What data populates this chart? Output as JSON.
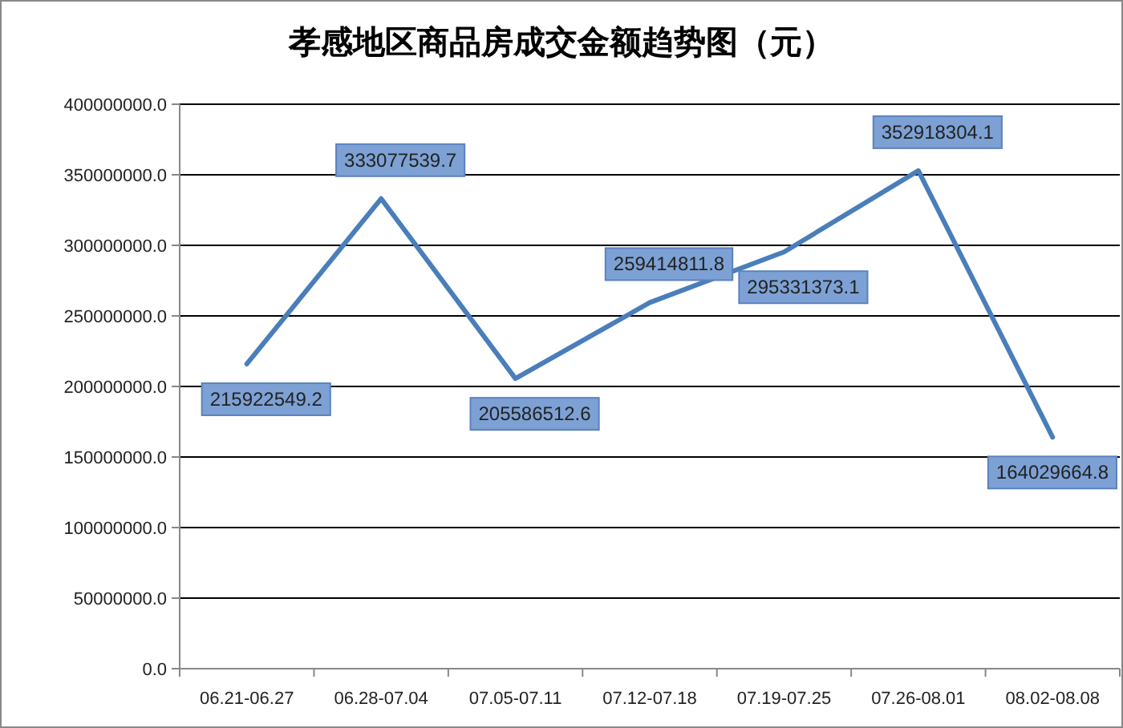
{
  "chart_data": {
    "type": "line",
    "title": "孝感地区商品房成交金额趋势图（元）",
    "categories": [
      "06.21-06.27",
      "06.28-07.04",
      "07.05-07.11",
      "07.12-07.18",
      "07.19-07.25",
      "07.26-08.01",
      "08.02-08.08"
    ],
    "series": [
      {
        "color": "#4a7ebb",
        "values": [
          215922549.2,
          333077539.7,
          205586512.6,
          259414811.8,
          295331373.1,
          352918304.1,
          164029664.8
        ]
      }
    ],
    "ylim": [
      0,
      400000000
    ],
    "yticks": [
      {
        "value": 0,
        "label": "0.0"
      },
      {
        "value": 50000000,
        "label": "50000000.0"
      },
      {
        "value": 100000000,
        "label": "100000000.0"
      },
      {
        "value": 150000000,
        "label": "150000000.0"
      },
      {
        "value": 200000000,
        "label": "200000000.0"
      },
      {
        "value": 250000000,
        "label": "250000000.0"
      },
      {
        "value": 300000000,
        "label": "300000000.0"
      },
      {
        "value": 350000000,
        "label": "350000000.0"
      },
      {
        "value": 400000000,
        "label": "400000000.0"
      }
    ],
    "grid": "y",
    "data_labels": true,
    "marker": "none",
    "line_style": "solid"
  }
}
